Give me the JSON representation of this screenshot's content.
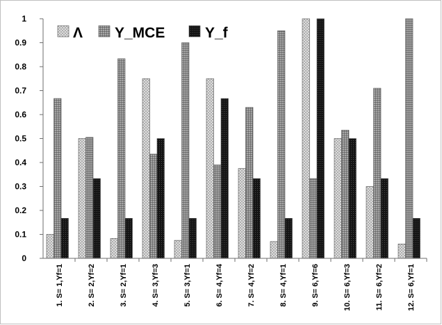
{
  "chart_data": {
    "type": "bar",
    "title": "",
    "xlabel": "",
    "ylabel": "",
    "ylim": [
      0,
      1
    ],
    "yticks": [
      "0",
      "0.1",
      "0.2",
      "0.3",
      "0.4",
      "0.5",
      "0.6",
      "0.7",
      "0.8",
      "0.9",
      "1"
    ],
    "grid": false,
    "legend_position": "top-left",
    "categories": [
      "1. S= 1,Υf=1",
      "2. S= 2,Υf=2",
      "3. S= 2,Υf=1",
      "4. S= 3,Υf=3",
      "5. S= 3,Υf=1",
      "6. S= 4,Υf=4",
      "7. S= 4,Υf=2",
      "8. S= 4,Υf=1",
      "9. S= 6,Υf=6",
      "10. S= 6,Υf=3",
      "11. S= 6,Υf=2",
      "12. S= 6,Υf=1"
    ],
    "series": [
      {
        "name": "Λ",
        "pattern": "diamond-light",
        "values": [
          0.1,
          0.5,
          0.083,
          0.75,
          0.075,
          0.75,
          0.375,
          0.07,
          1.0,
          0.5,
          0.3,
          0.06
        ]
      },
      {
        "name": "Υ_MCE",
        "pattern": "grid-medium",
        "values": [
          0.667,
          0.505,
          0.833,
          0.435,
          0.9,
          0.39,
          0.63,
          0.95,
          0.333,
          0.535,
          0.71,
          1.0
        ]
      },
      {
        "name": "Υ_f",
        "pattern": "dots-dark",
        "values": [
          0.167,
          0.333,
          0.167,
          0.5,
          0.167,
          0.667,
          0.333,
          0.167,
          1.0,
          0.5,
          0.333,
          0.167
        ]
      }
    ]
  }
}
